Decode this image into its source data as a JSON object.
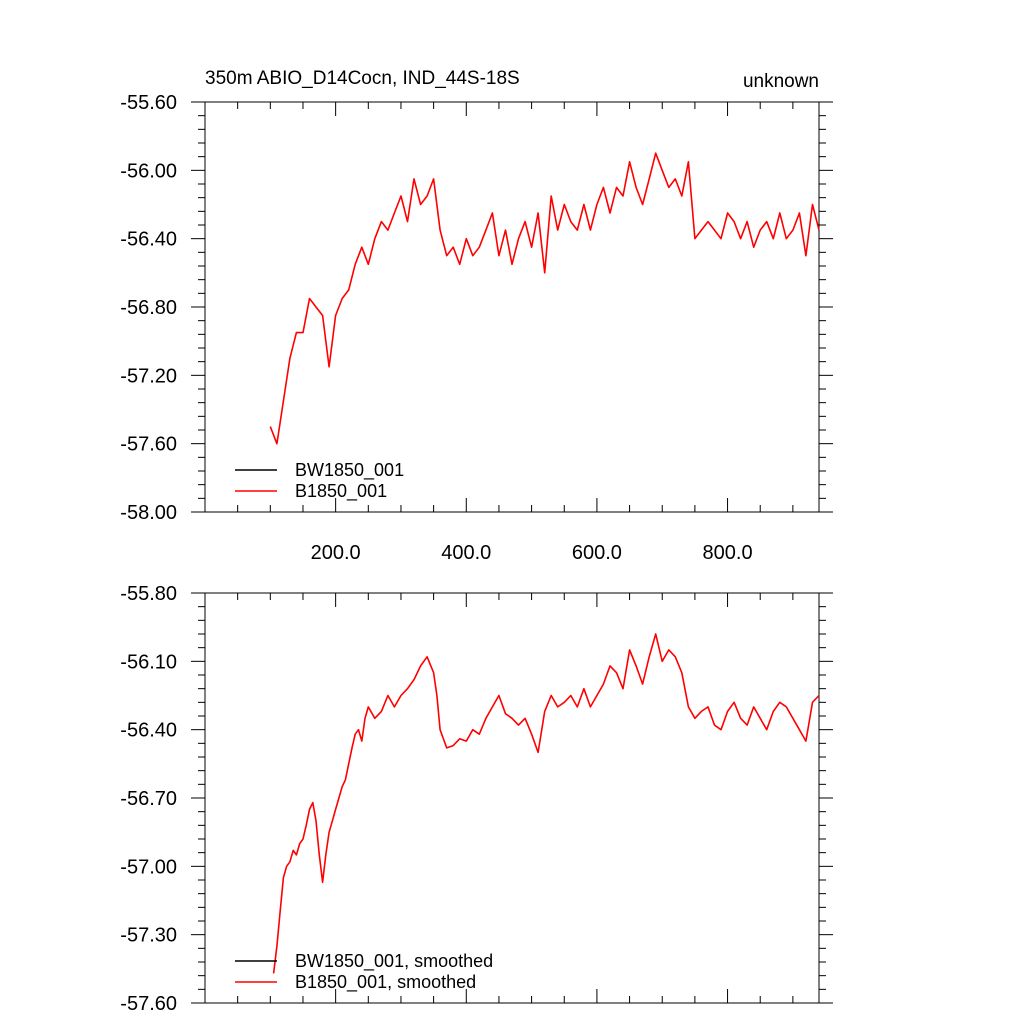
{
  "colors": {
    "BW1850_001": "#000000",
    "B1850_001": "#ff0000"
  },
  "chart_data": [
    {
      "type": "line",
      "title": "350m ABIO_D14Cocn, IND_44S-18S",
      "title_right": "unknown",
      "xlabel": "",
      "ylabel": "",
      "xlim": [
        0,
        940
      ],
      "ylim": [
        -58.0,
        -55.6
      ],
      "x_major_ticks": [
        200,
        400,
        600,
        800
      ],
      "x_tick_labels": [
        "200.0",
        "400.0",
        "600.0",
        "800.0"
      ],
      "y_major_ticks": [
        -58.0,
        -57.6,
        -57.2,
        -56.8,
        -56.4,
        -56.0,
        -55.6
      ],
      "y_tick_labels": [
        "-58.00",
        "-57.60",
        "-57.20",
        "-56.80",
        "-56.40",
        "-56.00",
        "-55.60"
      ],
      "grid": false,
      "legend_position": "bottom-left",
      "series": [
        {
          "name": "BW1850_001",
          "color": "#000000",
          "x": [],
          "y": []
        },
        {
          "name": "B1850_001",
          "color": "#ff0000",
          "x": [
            100,
            110,
            120,
            130,
            140,
            150,
            160,
            170,
            180,
            190,
            200,
            210,
            220,
            230,
            240,
            250,
            260,
            270,
            280,
            290,
            300,
            310,
            320,
            330,
            340,
            350,
            360,
            370,
            380,
            390,
            400,
            410,
            420,
            430,
            440,
            450,
            460,
            470,
            480,
            490,
            500,
            510,
            520,
            530,
            540,
            550,
            560,
            570,
            580,
            590,
            600,
            610,
            620,
            630,
            640,
            650,
            660,
            670,
            680,
            690,
            700,
            710,
            720,
            730,
            740,
            750,
            760,
            770,
            780,
            790,
            800,
            810,
            820,
            830,
            840,
            850,
            860,
            870,
            880,
            890,
            900,
            910,
            920,
            930,
            940
          ],
          "y": [
            -57.5,
            -57.6,
            -57.35,
            -57.1,
            -56.95,
            -56.95,
            -56.75,
            -56.8,
            -56.85,
            -57.15,
            -56.85,
            -56.75,
            -56.7,
            -56.55,
            -56.45,
            -56.55,
            -56.4,
            -56.3,
            -56.35,
            -56.25,
            -56.15,
            -56.3,
            -56.05,
            -56.2,
            -56.15,
            -56.05,
            -56.35,
            -56.5,
            -56.45,
            -56.55,
            -56.4,
            -56.5,
            -56.45,
            -56.35,
            -56.25,
            -56.5,
            -56.35,
            -56.55,
            -56.4,
            -56.3,
            -56.45,
            -56.25,
            -56.6,
            -56.15,
            -56.35,
            -56.2,
            -56.3,
            -56.35,
            -56.2,
            -56.35,
            -56.2,
            -56.1,
            -56.25,
            -56.1,
            -56.15,
            -55.95,
            -56.1,
            -56.2,
            -56.05,
            -55.9,
            -56.0,
            -56.1,
            -56.05,
            -56.15,
            -55.95,
            -56.4,
            -56.35,
            -56.3,
            -56.35,
            -56.4,
            -56.25,
            -56.3,
            -56.4,
            -56.3,
            -56.45,
            -56.35,
            -56.3,
            -56.4,
            -56.25,
            -56.4,
            -56.35,
            -56.25,
            -56.5,
            -56.2,
            -56.35
          ]
        }
      ]
    },
    {
      "type": "line",
      "title": "",
      "xlabel": "",
      "ylabel": "",
      "xlim": [
        0,
        940
      ],
      "ylim": [
        -57.6,
        -55.8
      ],
      "x_major_ticks": [
        200,
        400,
        600,
        800
      ],
      "x_tick_labels": [],
      "y_major_ticks": [
        -57.6,
        -57.3,
        -57.0,
        -56.7,
        -56.4,
        -56.1,
        -55.8
      ],
      "y_tick_labels": [
        "-57.60",
        "-57.30",
        "-57.00",
        "-56.70",
        "-56.40",
        "-56.10",
        "-55.80"
      ],
      "grid": false,
      "legend_position": "bottom-left",
      "series": [
        {
          "name": "BW1850_001, smoothed",
          "color": "#000000",
          "x": [],
          "y": []
        },
        {
          "name": "B1850_001, smoothed",
          "color": "#ff0000",
          "x": [
            105,
            110,
            115,
            120,
            125,
            130,
            135,
            140,
            145,
            150,
            155,
            160,
            165,
            170,
            175,
            180,
            185,
            190,
            195,
            200,
            205,
            210,
            215,
            220,
            225,
            230,
            235,
            240,
            245,
            250,
            260,
            270,
            280,
            290,
            300,
            310,
            320,
            330,
            340,
            350,
            355,
            360,
            370,
            380,
            390,
            400,
            410,
            420,
            430,
            440,
            450,
            460,
            470,
            480,
            490,
            500,
            510,
            520,
            530,
            540,
            550,
            560,
            570,
            580,
            590,
            600,
            610,
            620,
            630,
            640,
            650,
            660,
            670,
            680,
            690,
            700,
            710,
            720,
            730,
            740,
            750,
            760,
            770,
            780,
            790,
            800,
            810,
            820,
            830,
            840,
            850,
            860,
            870,
            880,
            890,
            900,
            910,
            920,
            930,
            940
          ],
          "y": [
            -57.47,
            -57.35,
            -57.2,
            -57.05,
            -57.0,
            -56.98,
            -56.93,
            -56.95,
            -56.9,
            -56.88,
            -56.82,
            -56.75,
            -56.72,
            -56.8,
            -56.95,
            -57.07,
            -56.95,
            -56.85,
            -56.8,
            -56.75,
            -56.7,
            -56.65,
            -56.62,
            -56.55,
            -56.48,
            -56.42,
            -56.4,
            -56.45,
            -56.35,
            -56.3,
            -56.35,
            -56.32,
            -56.25,
            -56.3,
            -56.25,
            -56.22,
            -56.18,
            -56.12,
            -56.08,
            -56.15,
            -56.25,
            -56.4,
            -56.48,
            -56.47,
            -56.44,
            -56.45,
            -56.4,
            -56.42,
            -56.35,
            -56.3,
            -56.25,
            -56.33,
            -56.35,
            -56.38,
            -56.35,
            -56.42,
            -56.5,
            -56.32,
            -56.25,
            -56.3,
            -56.28,
            -56.25,
            -56.3,
            -56.22,
            -56.3,
            -56.25,
            -56.2,
            -56.12,
            -56.15,
            -56.22,
            -56.05,
            -56.12,
            -56.2,
            -56.08,
            -55.98,
            -56.1,
            -56.05,
            -56.08,
            -56.15,
            -56.3,
            -56.35,
            -56.32,
            -56.3,
            -56.38,
            -56.4,
            -56.32,
            -56.28,
            -56.35,
            -56.38,
            -56.3,
            -56.35,
            -56.4,
            -56.32,
            -56.28,
            -56.3,
            -56.35,
            -56.4,
            -56.45,
            -56.28,
            -56.25
          ]
        }
      ]
    }
  ]
}
